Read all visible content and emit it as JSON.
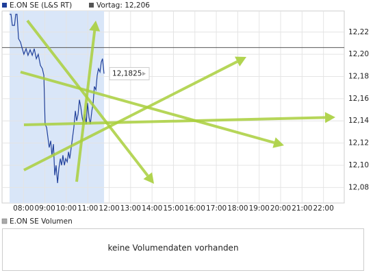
{
  "chart_data": {
    "type": "line",
    "x": [
      7.35,
      7.42,
      7.48,
      7.58,
      7.64,
      7.7,
      7.77,
      7.86,
      7.93,
      8.02,
      8.12,
      8.21,
      8.31,
      8.41,
      8.5,
      8.6,
      8.69,
      8.79,
      8.88,
      8.95,
      9.01,
      9.08,
      9.14,
      9.2,
      9.27,
      9.33,
      9.4,
      9.46,
      9.52,
      9.59,
      9.65,
      9.72,
      9.78,
      9.84,
      9.91,
      9.97,
      10.04,
      10.1,
      10.16,
      10.23,
      10.29,
      10.35,
      10.42,
      10.48,
      10.55,
      10.61,
      10.67,
      10.74,
      10.8,
      10.87,
      10.93,
      10.99,
      11.06,
      11.12,
      11.19,
      11.25,
      11.31,
      11.38,
      11.44,
      11.5,
      11.57,
      11.63,
      11.69,
      11.76
    ],
    "series": [
      {
        "name": "E.ON SE (L&S RT)",
        "color": "#1f3f9a",
        "values": [
          12.236,
          12.236,
          12.226,
          12.226,
          12.236,
          12.236,
          12.214,
          12.211,
          12.206,
          12.2,
          12.205,
          12.199,
          12.204,
          12.199,
          12.205,
          12.196,
          12.2,
          12.19,
          12.187,
          12.181,
          12.137,
          12.134,
          12.125,
          12.116,
          12.122,
          12.109,
          12.119,
          12.091,
          12.1,
          12.084,
          12.097,
          12.106,
          12.1,
          12.109,
          12.1,
          12.106,
          12.103,
          12.112,
          12.106,
          12.116,
          12.125,
          12.134,
          12.149,
          12.14,
          12.146,
          12.159,
          12.153,
          12.143,
          12.137,
          12.146,
          12.137,
          12.156,
          12.143,
          12.137,
          12.149,
          12.156,
          12.171,
          12.168,
          12.181,
          12.187,
          12.184,
          12.193,
          12.196,
          12.1825
        ]
      }
    ],
    "area_color": "#d9e6f8",
    "previous_close": {
      "value": 12.206,
      "label": "Vortag: 12,206",
      "color": "#555555"
    },
    "last_price": {
      "value": 12.1825,
      "label": "12,1825"
    },
    "xlim": [
      7,
      22.97
    ],
    "xticks": [
      {
        "value": 8,
        "label": "08:00"
      },
      {
        "value": 9,
        "label": "09:00"
      },
      {
        "value": 10,
        "label": "10:00"
      },
      {
        "value": 11,
        "label": "11:00"
      },
      {
        "value": 12,
        "label": "12:00"
      },
      {
        "value": 13,
        "label": "13:00"
      },
      {
        "value": 14,
        "label": "14:00"
      },
      {
        "value": 15,
        "label": "15:00"
      },
      {
        "value": 16,
        "label": "16:00"
      },
      {
        "value": 17,
        "label": "17:00"
      },
      {
        "value": 18,
        "label": "18:00"
      },
      {
        "value": 19,
        "label": "19:00"
      },
      {
        "value": 20,
        "label": "20:00"
      },
      {
        "value": 21,
        "label": "21:00"
      },
      {
        "value": 22,
        "label": "22:00"
      }
    ],
    "ylim": [
      12.066,
      12.239
    ],
    "yticks": [
      {
        "value": 12.08,
        "label": "12,08"
      },
      {
        "value": 12.1,
        "label": "12,10"
      },
      {
        "value": 12.12,
        "label": "12,12"
      },
      {
        "value": 12.14,
        "label": "12,14"
      },
      {
        "value": 12.16,
        "label": "12,16"
      },
      {
        "value": 12.18,
        "label": "12,18"
      },
      {
        "value": 12.2,
        "label": "12,20"
      },
      {
        "value": 12.22,
        "label": "12,22"
      }
    ],
    "grid": true,
    "volume_panel": {
      "title": "E.ON SE Volumen",
      "message": "keine Volumendaten vorhanden"
    }
  }
}
